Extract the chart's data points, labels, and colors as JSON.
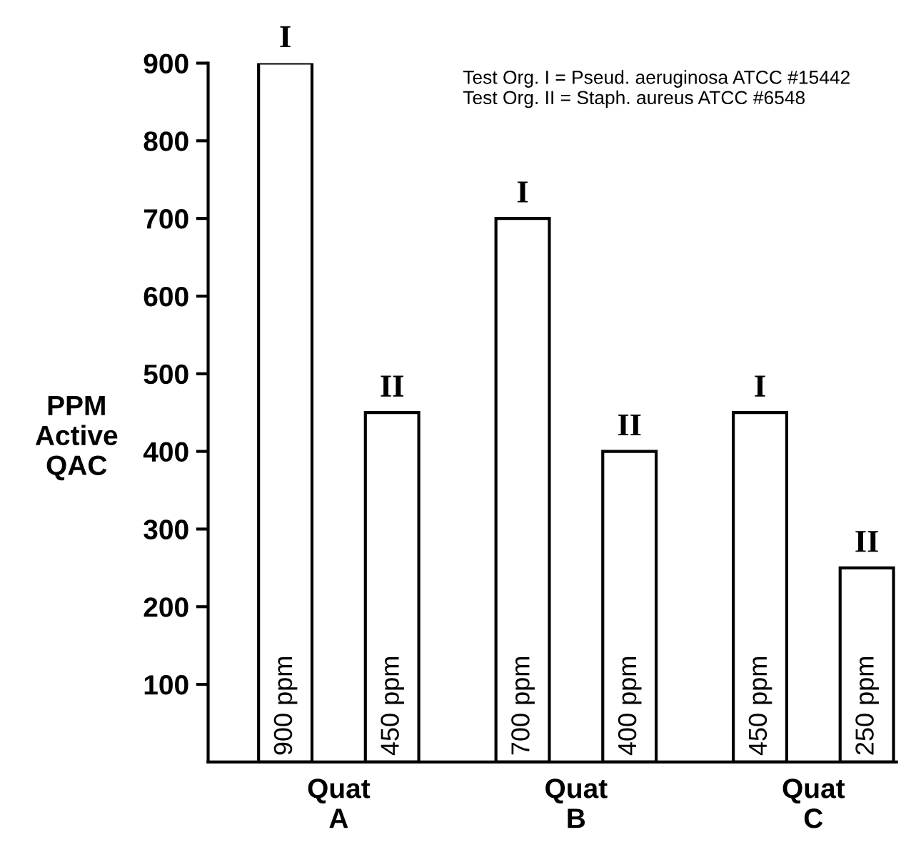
{
  "chart_data": {
    "type": "bar",
    "ylabel": "PPM\nActive\nQAC",
    "categories": [
      "Quat\nA",
      "Quat\nB",
      "Quat\nC"
    ],
    "series": [
      {
        "name": "I",
        "color": "#ffffff",
        "values": [
          900,
          700,
          450
        ],
        "value_labels": [
          "900 ppm",
          "700 ppm",
          "450 ppm"
        ]
      },
      {
        "name": "II",
        "color": "#ffffff",
        "values": [
          450,
          400,
          250
        ],
        "value_labels": [
          "450 ppm",
          "400 ppm",
          "250 ppm"
        ]
      }
    ],
    "ylim": [
      0,
      900
    ],
    "yticks": [
      100,
      200,
      300,
      400,
      500,
      600,
      700,
      800,
      900
    ],
    "grid": false,
    "legend": false,
    "annotations": [
      "Test Org. I = Pseud. aeruginosa ATCC #15442\nTest Org. II = Staph. aureus ATCC #6548"
    ]
  }
}
